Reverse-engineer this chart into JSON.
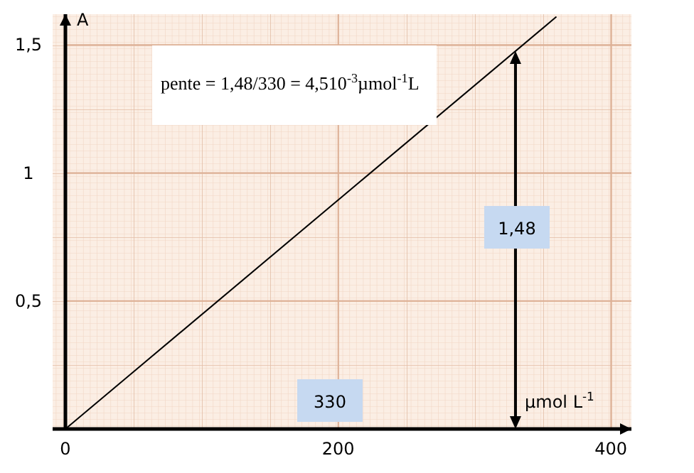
{
  "chart_data": {
    "type": "line",
    "xlabel": "µmol L$^{-1}$",
    "ylabel": "A",
    "x": [
      0,
      360
    ],
    "series": [
      {
        "color": "#000000",
        "values": [
          0,
          1.61
        ]
      }
    ],
    "xlim": [
      0,
      415
    ],
    "ylim": [
      0,
      1.62
    ],
    "xticks": [
      0,
      200,
      400
    ],
    "yticks": [
      {
        "value": 0.5,
        "label": "0,5"
      },
      {
        "value": 1,
        "label": "1"
      },
      {
        "value": 1.5,
        "label": "1,5"
      }
    ],
    "line_style": "solid",
    "grid": true,
    "annotations": [
      "pente = 1,48/330 = 4,510$^{-3}$µmol$^{-1}$L",
      "1,48",
      "330"
    ],
    "ref_lines": [
      {
        "axis": "x",
        "value": 330,
        "color": "#000000"
      }
    ]
  }
}
